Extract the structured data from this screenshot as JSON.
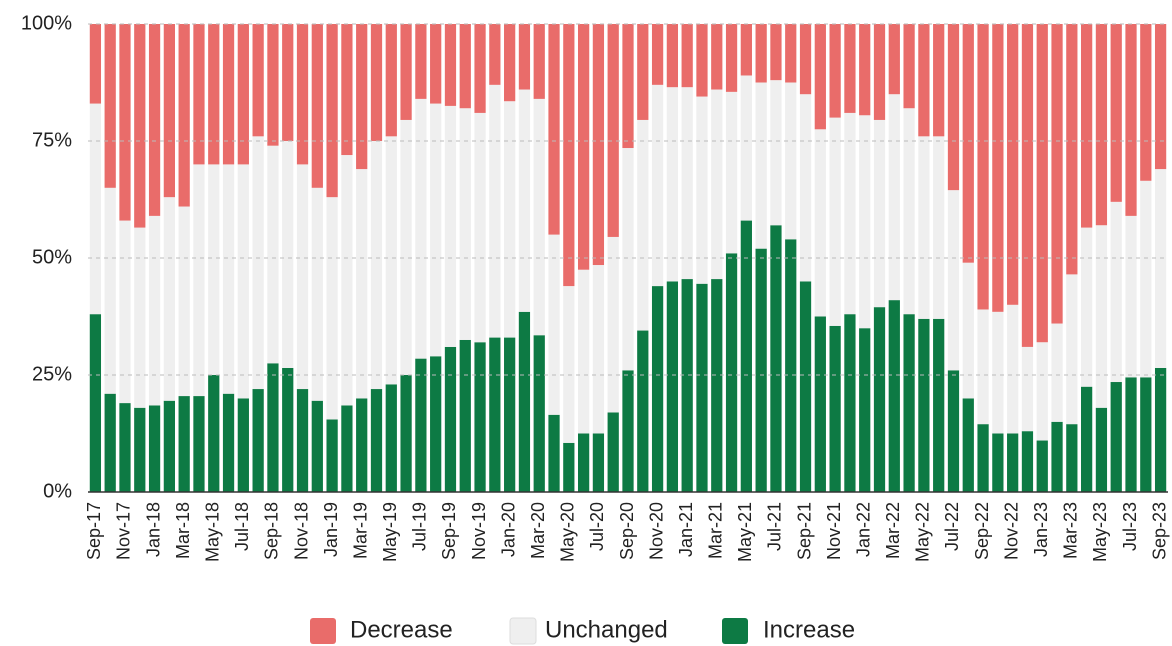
{
  "chart_data": {
    "type": "stacked_bar",
    "categories": [
      "Sep-17",
      null,
      "Nov-17",
      null,
      "Jan-18",
      null,
      "Mar-18",
      null,
      "May-18",
      null,
      "Jul-18",
      null,
      "Sep-18",
      null,
      "Nov-18",
      null,
      "Jan-19",
      null,
      "Mar-19",
      null,
      "May-19",
      null,
      "Jul-19",
      null,
      "Sep-19",
      null,
      "Nov-19",
      null,
      "Jan-20",
      null,
      "Mar-20",
      null,
      "May-20",
      null,
      "Jul-20",
      null,
      "Sep-20",
      null,
      "Nov-20",
      null,
      "Jan-21",
      null,
      "Mar-21",
      null,
      "May-21",
      null,
      "Jul-21",
      null,
      "Sep-21",
      null,
      "Nov-21",
      null,
      "Jan-22",
      null,
      "Mar-22",
      null,
      "May-22",
      null,
      "Jul-22",
      null,
      "Sep-22",
      null,
      "Nov-22",
      null,
      "Jan-23",
      null,
      "Mar-23",
      null,
      "May-23",
      null,
      "Jul-23",
      null,
      "Sep-23"
    ],
    "series": [
      {
        "name": "Decrease",
        "color": "#e96c6a",
        "values": [
          17,
          35,
          42,
          43.5,
          41,
          37,
          39,
          30,
          30,
          30,
          30,
          24,
          26,
          25,
          30,
          35,
          37,
          28,
          31,
          25,
          24,
          20.5,
          16,
          17,
          17.5,
          18,
          19,
          13,
          16.5,
          14,
          16,
          45,
          56,
          52.5,
          51.5,
          45.5,
          26.5,
          20.5,
          13,
          13.5,
          13.5,
          15.5,
          14,
          14.5,
          11,
          12.5,
          12,
          12.5,
          15,
          22.5,
          20,
          19,
          19.5,
          20.5,
          15,
          18,
          24,
          24,
          35.5,
          51,
          61,
          61.5,
          60,
          69,
          68,
          64,
          53.5,
          43.5,
          43,
          38,
          41,
          33.5,
          31
        ]
      },
      {
        "name": "Unchanged",
        "color": "#efefef",
        "values": [
          45,
          44,
          39,
          38.5,
          40.5,
          43.5,
          40.5,
          49.5,
          45,
          49,
          50,
          54,
          46.5,
          48.5,
          48,
          45.5,
          47.5,
          53.5,
          49,
          53,
          53,
          54.5,
          55.5,
          54,
          51.5,
          49.5,
          49,
          54,
          50.5,
          47.5,
          50.5,
          38.5,
          33.5,
          35,
          36,
          37.5,
          47.5,
          45,
          43,
          41.5,
          41,
          40,
          40.5,
          34.5,
          31,
          35.5,
          31,
          33.5,
          40,
          40,
          44.5,
          43,
          45.5,
          40,
          44,
          44,
          39,
          39,
          38.5,
          29,
          24.5,
          26,
          27.5,
          18,
          21,
          21,
          32,
          34,
          39,
          38.5,
          34.5,
          42,
          42.5
        ]
      },
      {
        "name": "Increase",
        "color": "#0d7a44",
        "values": [
          38,
          21,
          19,
          18,
          18.5,
          19.5,
          20.5,
          20.5,
          25,
          21,
          20,
          22,
          27.5,
          26.5,
          22,
          19.5,
          15.5,
          18.5,
          20,
          22,
          23,
          25,
          28.5,
          29,
          31,
          32.5,
          32,
          33,
          33,
          38.5,
          33.5,
          16.5,
          10.5,
          12.5,
          12.5,
          17,
          26,
          34.5,
          44,
          45,
          45.5,
          44.5,
          45.5,
          51,
          58,
          52,
          57,
          54,
          45,
          37.5,
          35.5,
          38,
          35,
          39.5,
          41,
          38,
          37,
          37,
          26,
          20,
          14.5,
          12.5,
          12.5,
          13,
          11,
          15,
          14.5,
          22.5,
          18,
          23.5,
          24.5,
          24.5,
          26.5
        ]
      }
    ],
    "ylim": [
      0,
      100
    ],
    "yticks": [
      {
        "value": 0,
        "label": "0%"
      },
      {
        "value": 25,
        "label": "25%"
      },
      {
        "value": 50,
        "label": "50%"
      },
      {
        "value": 75,
        "label": "75%"
      },
      {
        "value": 100,
        "label": "100%"
      }
    ],
    "grid": true,
    "legend": "bottom"
  }
}
